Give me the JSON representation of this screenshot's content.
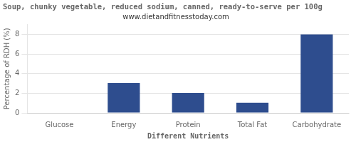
{
  "chart_data": {
    "type": "bar",
    "title": "Soup, chunky vegetable, reduced sodium, canned, ready-to-serve per 100g",
    "subtitle": "www.dietandfitnesstoday.com",
    "categories": [
      "Glucose",
      "Energy",
      "Protein",
      "Total Fat",
      "Carbohydrate"
    ],
    "values": [
      0.0,
      3.03,
      2.03,
      1.03,
      8.0
    ],
    "color": "#2e4d8e",
    "xlabel": "Different Nutrients",
    "ylabel": "Percentage of RDH (%)",
    "ylim": [
      0,
      9
    ],
    "yticks": [
      0,
      2,
      4,
      6,
      8
    ],
    "grid": true
  }
}
